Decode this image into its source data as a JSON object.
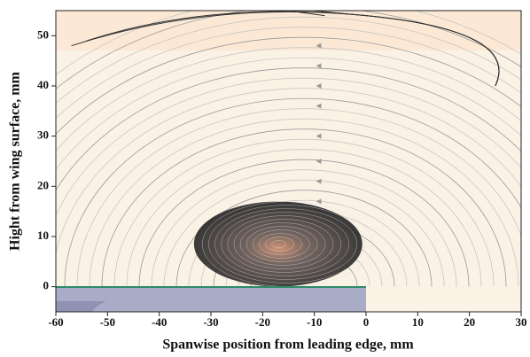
{
  "chart_data": {
    "type": "streamline",
    "xlabel": "Spanwise position from leading edge, mm",
    "ylabel": "Hight from wing surface, mm",
    "xlim": [
      -60,
      30
    ],
    "ylim": [
      -5,
      55
    ],
    "xticks": [
      -60,
      -50,
      -40,
      -30,
      -20,
      -10,
      0,
      10,
      20,
      30
    ],
    "yticks": [
      0,
      10,
      20,
      30,
      40,
      50
    ]
  }
}
